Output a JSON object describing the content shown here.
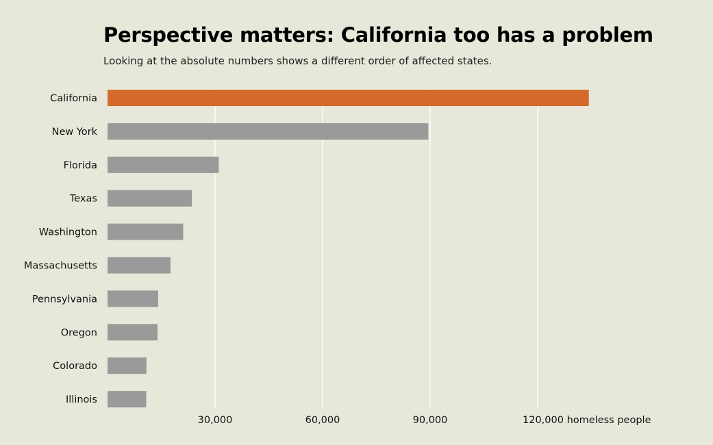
{
  "chart_data": {
    "type": "bar",
    "orientation": "horizontal",
    "title": "Perspective matters: California too has a problem",
    "subtitle": "Looking at the absolute numbers shows a different order of affected states.",
    "categories": [
      "California",
      "New York",
      "Florida",
      "Texas",
      "Washington",
      "Massachusetts",
      "Pennsylvania",
      "Oregon",
      "Colorado",
      "Illinois"
    ],
    "values": [
      134278,
      89503,
      31030,
      23548,
      21112,
      17565,
      14138,
      13953,
      10857,
      10798
    ],
    "highlight_category": "California",
    "xlim": [
      0,
      150000
    ],
    "xticks": [
      30000,
      60000,
      90000,
      120000
    ],
    "xtick_labels": [
      "30,000",
      "60,000",
      "90,000",
      "120,000 homeless people"
    ],
    "grid": "vertical",
    "colors": {
      "highlight": "#d46b2a",
      "default": "#9a9a9a",
      "grid": "#ffffff",
      "background": "#e8e8da"
    }
  }
}
